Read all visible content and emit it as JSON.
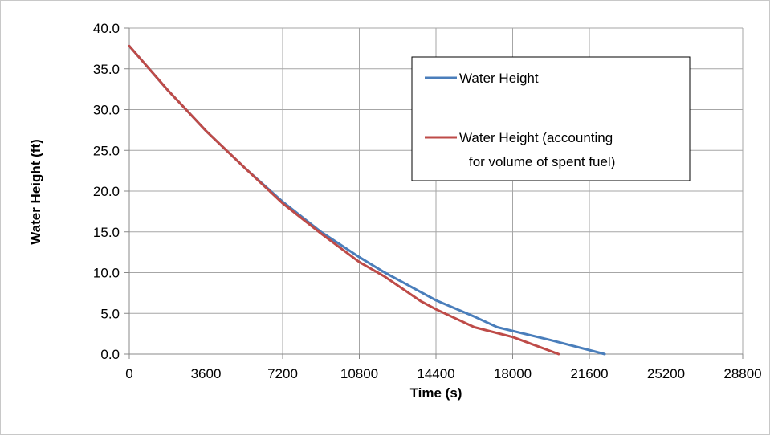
{
  "chart_data": {
    "type": "line",
    "xlabel": "Time (s)",
    "ylabel": "Water Height (ft)",
    "xlim": [
      0,
      28800
    ],
    "ylim": [
      0,
      40
    ],
    "grid": true,
    "legend_position": "top-right",
    "x_ticks": [
      "0",
      "3600",
      "7200",
      "10800",
      "14400",
      "18000",
      "21600",
      "25200",
      "28800"
    ],
    "y_ticks": [
      "0.0",
      "5.0",
      "10.0",
      "15.0",
      "20.0",
      "25.0",
      "30.0",
      "35.0",
      "40.0"
    ],
    "series": [
      {
        "name": "Water Height",
        "color": "#4a7ebb",
        "x": [
          0,
          1800,
          3600,
          5400,
          7200,
          9000,
          10800,
          12000,
          14400,
          16200,
          17280,
          19800,
          22320
        ],
        "y": [
          37.8,
          32.4,
          27.4,
          22.9,
          18.7,
          15.0,
          11.9,
          10.0,
          6.6,
          4.6,
          3.3,
          1.7,
          0.0
        ]
      },
      {
        "name": "Water Height (accounting for volume of spent fuel)",
        "legend_lines": [
          "Water Height (accounting",
          "for volume of spent fuel)"
        ],
        "color": "#be4b48",
        "x": [
          0,
          1800,
          3600,
          5400,
          7200,
          9000,
          10800,
          12000,
          13680,
          14400,
          16200,
          18000,
          20160
        ],
        "y": [
          37.8,
          32.4,
          27.4,
          22.9,
          18.5,
          14.8,
          11.3,
          9.5,
          6.5,
          5.5,
          3.3,
          2.1,
          0.0
        ]
      }
    ]
  }
}
